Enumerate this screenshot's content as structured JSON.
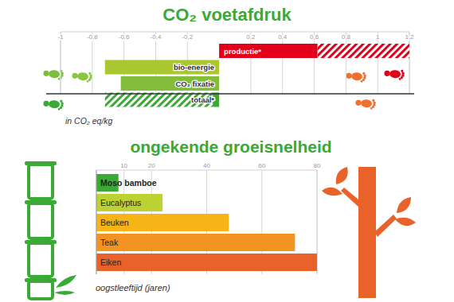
{
  "chart_data": [
    {
      "type": "bar",
      "title": "CO₂ voetafdruk",
      "orientation": "horizontal",
      "categories": [
        "productie*",
        "bio-energie",
        "CO₂ fixatie",
        "totaal*"
      ],
      "values": [
        0.62,
        -0.72,
        -0.62,
        -0.04
      ],
      "hatched_to": [
        1.2,
        null,
        null,
        -0.72
      ],
      "colors": [
        "#e2001a",
        "#a9c82f",
        "#84bd3a",
        "#3aa935"
      ],
      "xlabel": "in CO₂ eq/kg",
      "xlim": [
        -1,
        1.2
      ],
      "xticks": [
        -1,
        {
          "value": -0.8,
          "label": "-0,8"
        },
        {
          "value": -0.6,
          "label": "-0,6"
        },
        {
          "value": -0.4,
          "label": "-0,4"
        },
        {
          "value": -0.2,
          "label": "-0,2"
        },
        {
          "value": 0.2,
          "label": "0,2"
        },
        {
          "value": 0.4,
          "label": "0,4"
        },
        {
          "value": 0.6,
          "label": "0,6"
        },
        {
          "value": 0.8,
          "label": "0,8"
        },
        1,
        {
          "value": 1.2,
          "label": "1,2"
        }
      ],
      "grid": true
    },
    {
      "type": "bar",
      "title": "ongekende groeisnelheid",
      "orientation": "horizontal",
      "categories": [
        "Moso bamboe",
        "Eucalyptus",
        "Beuken",
        "Teak",
        "Eiken"
      ],
      "values": [
        8,
        24,
        48,
        72,
        80
      ],
      "colors": [
        "#3aa935",
        "#bcd232",
        "#f6b417",
        "#f39422",
        "#e8622a"
      ],
      "xlabel": "oogstleeftijd (jaren)",
      "xlim": [
        0,
        80
      ],
      "xticks": [
        10,
        20,
        40,
        60,
        80
      ],
      "grid": true
    }
  ]
}
